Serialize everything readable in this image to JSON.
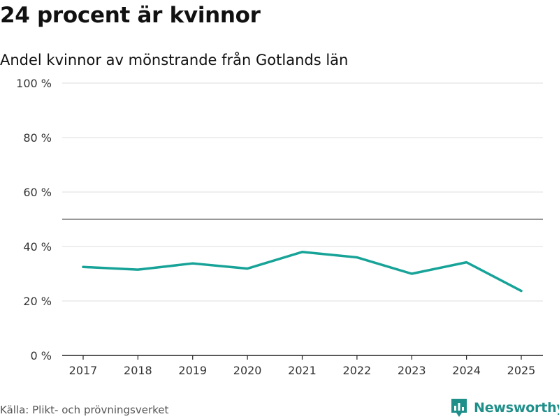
{
  "header": {
    "title": "24 procent är kvinnor",
    "subtitle": "Andel kvinnor av mönstrande från Gotlands län"
  },
  "footer": {
    "source": "Källa: Plikt- och prövningsverket",
    "brand": "Newsworthy"
  },
  "colors": {
    "line": "#17a398",
    "grid": "#dddddd",
    "reference": "#777777",
    "axis": "#222222",
    "brand": "#1f8f8a"
  },
  "icons": {
    "logo": "bar-chart-speech-bubble-icon"
  },
  "chart_data": {
    "type": "line",
    "title": "24 procent är kvinnor",
    "subtitle": "Andel kvinnor av mönstrande från Gotlands län",
    "xlabel": "",
    "ylabel": "",
    "categories": [
      "2017",
      "2018",
      "2019",
      "2020",
      "2021",
      "2022",
      "2023",
      "2024",
      "2025"
    ],
    "series": [
      {
        "name": "Andel kvinnor",
        "values": [
          32.5,
          31.5,
          33.8,
          31.9,
          38.0,
          36.0,
          30.0,
          34.2,
          23.7
        ]
      }
    ],
    "ylim": [
      0,
      100
    ],
    "yticks": [
      0,
      20,
      40,
      60,
      80,
      100
    ],
    "ytick_labels": [
      "0 %",
      "20 %",
      "40 %",
      "60 %",
      "80 %",
      "100 %"
    ],
    "reference_line": 50,
    "grid": true,
    "legend": "none"
  }
}
